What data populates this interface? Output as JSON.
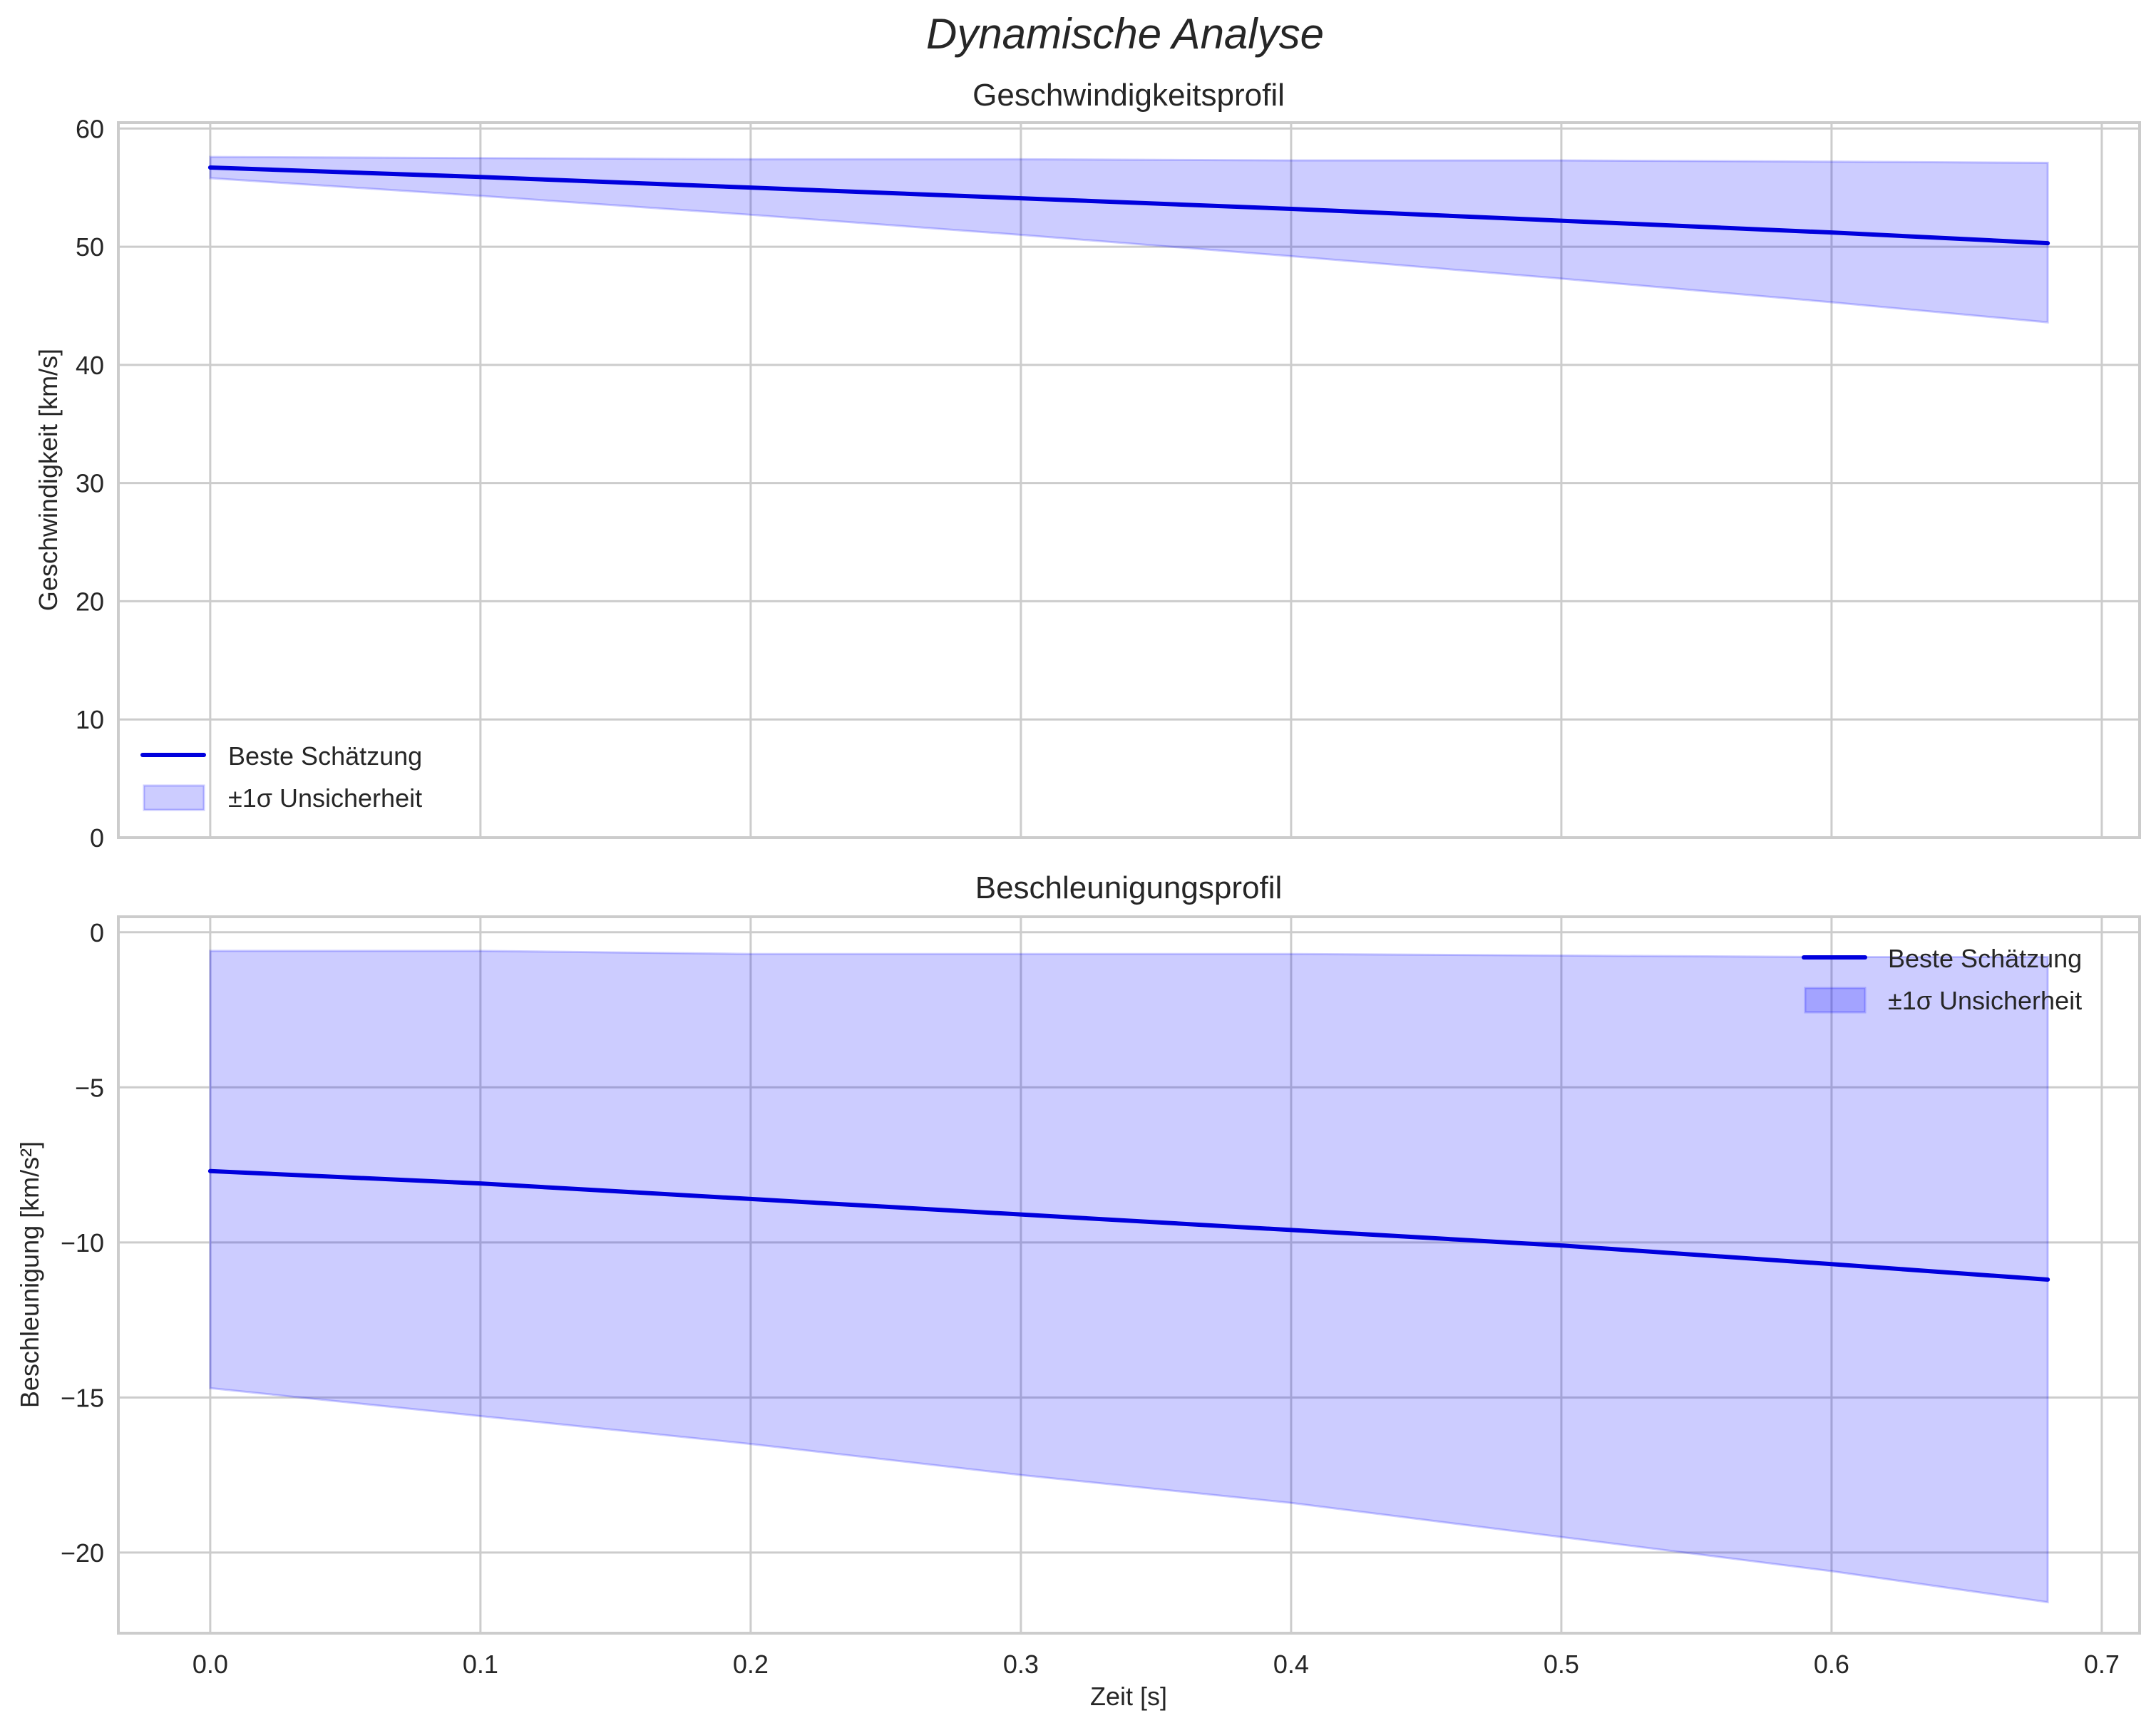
{
  "figure": {
    "suptitle": "Dynamische Analyse",
    "xlabel": "Zeit [s]"
  },
  "colors": {
    "line": "#0000dd",
    "band_fill": "#0000ff",
    "band_alpha": 0.2,
    "grid": "#cccccc",
    "spine": "#cccccc",
    "text": "#262626"
  },
  "chart_data": [
    {
      "type": "line",
      "title": "Geschwindigkeitsprofil",
      "xlabel": "",
      "ylabel": "Geschwindigkeit [km/s]",
      "xlim": [
        -0.034,
        0.714
      ],
      "ylim": [
        0,
        60.5
      ],
      "xticks": [
        0.0,
        0.1,
        0.2,
        0.3,
        0.4,
        0.5,
        0.6,
        0.7
      ],
      "xtick_labels_visible": false,
      "yticks": [
        0,
        10,
        20,
        30,
        40,
        50,
        60
      ],
      "grid": true,
      "legend_position": "lower left",
      "x": [
        0.0,
        0.1,
        0.2,
        0.3,
        0.4,
        0.5,
        0.6,
        0.68
      ],
      "series": [
        {
          "name": "Beste Schätzung",
          "kind": "line",
          "values": [
            56.7,
            55.9,
            55.0,
            54.1,
            53.2,
            52.2,
            51.2,
            50.3
          ]
        },
        {
          "name": "±1σ Unsicherheit",
          "kind": "band",
          "upper": [
            57.6,
            57.5,
            57.4,
            57.4,
            57.3,
            57.3,
            57.2,
            57.1
          ],
          "lower": [
            55.8,
            54.3,
            52.7,
            51.0,
            49.2,
            47.3,
            45.3,
            43.6
          ]
        }
      ]
    },
    {
      "type": "line",
      "title": "Beschleunigungsprofil",
      "xlabel": "Zeit [s]",
      "ylabel": "Beschleunigung [km/s²]",
      "xlim": [
        -0.034,
        0.714
      ],
      "ylim": [
        -22.6,
        0.5
      ],
      "xticks": [
        0.0,
        0.1,
        0.2,
        0.3,
        0.4,
        0.5,
        0.6,
        0.7
      ],
      "xtick_labels": [
        "0.0",
        "0.1",
        "0.2",
        "0.3",
        "0.4",
        "0.5",
        "0.6",
        "0.7"
      ],
      "yticks": [
        0,
        -5,
        -10,
        -15,
        -20
      ],
      "ytick_labels": [
        "0",
        "−5",
        "−10",
        "−15",
        "−20"
      ],
      "grid": true,
      "legend_position": "upper right",
      "x": [
        0.0,
        0.1,
        0.2,
        0.3,
        0.4,
        0.5,
        0.6,
        0.68
      ],
      "series": [
        {
          "name": "Beste Schätzung",
          "kind": "line",
          "values": [
            -7.7,
            -8.1,
            -8.6,
            -9.1,
            -9.6,
            -10.1,
            -10.7,
            -11.2
          ]
        },
        {
          "name": "±1σ Unsicherheit",
          "kind": "band",
          "upper": [
            -0.6,
            -0.6,
            -0.7,
            -0.7,
            -0.7,
            -0.75,
            -0.8,
            -0.8
          ],
          "lower": [
            -14.7,
            -15.6,
            -16.5,
            -17.5,
            -18.4,
            -19.5,
            -20.6,
            -21.6
          ]
        }
      ]
    }
  ]
}
